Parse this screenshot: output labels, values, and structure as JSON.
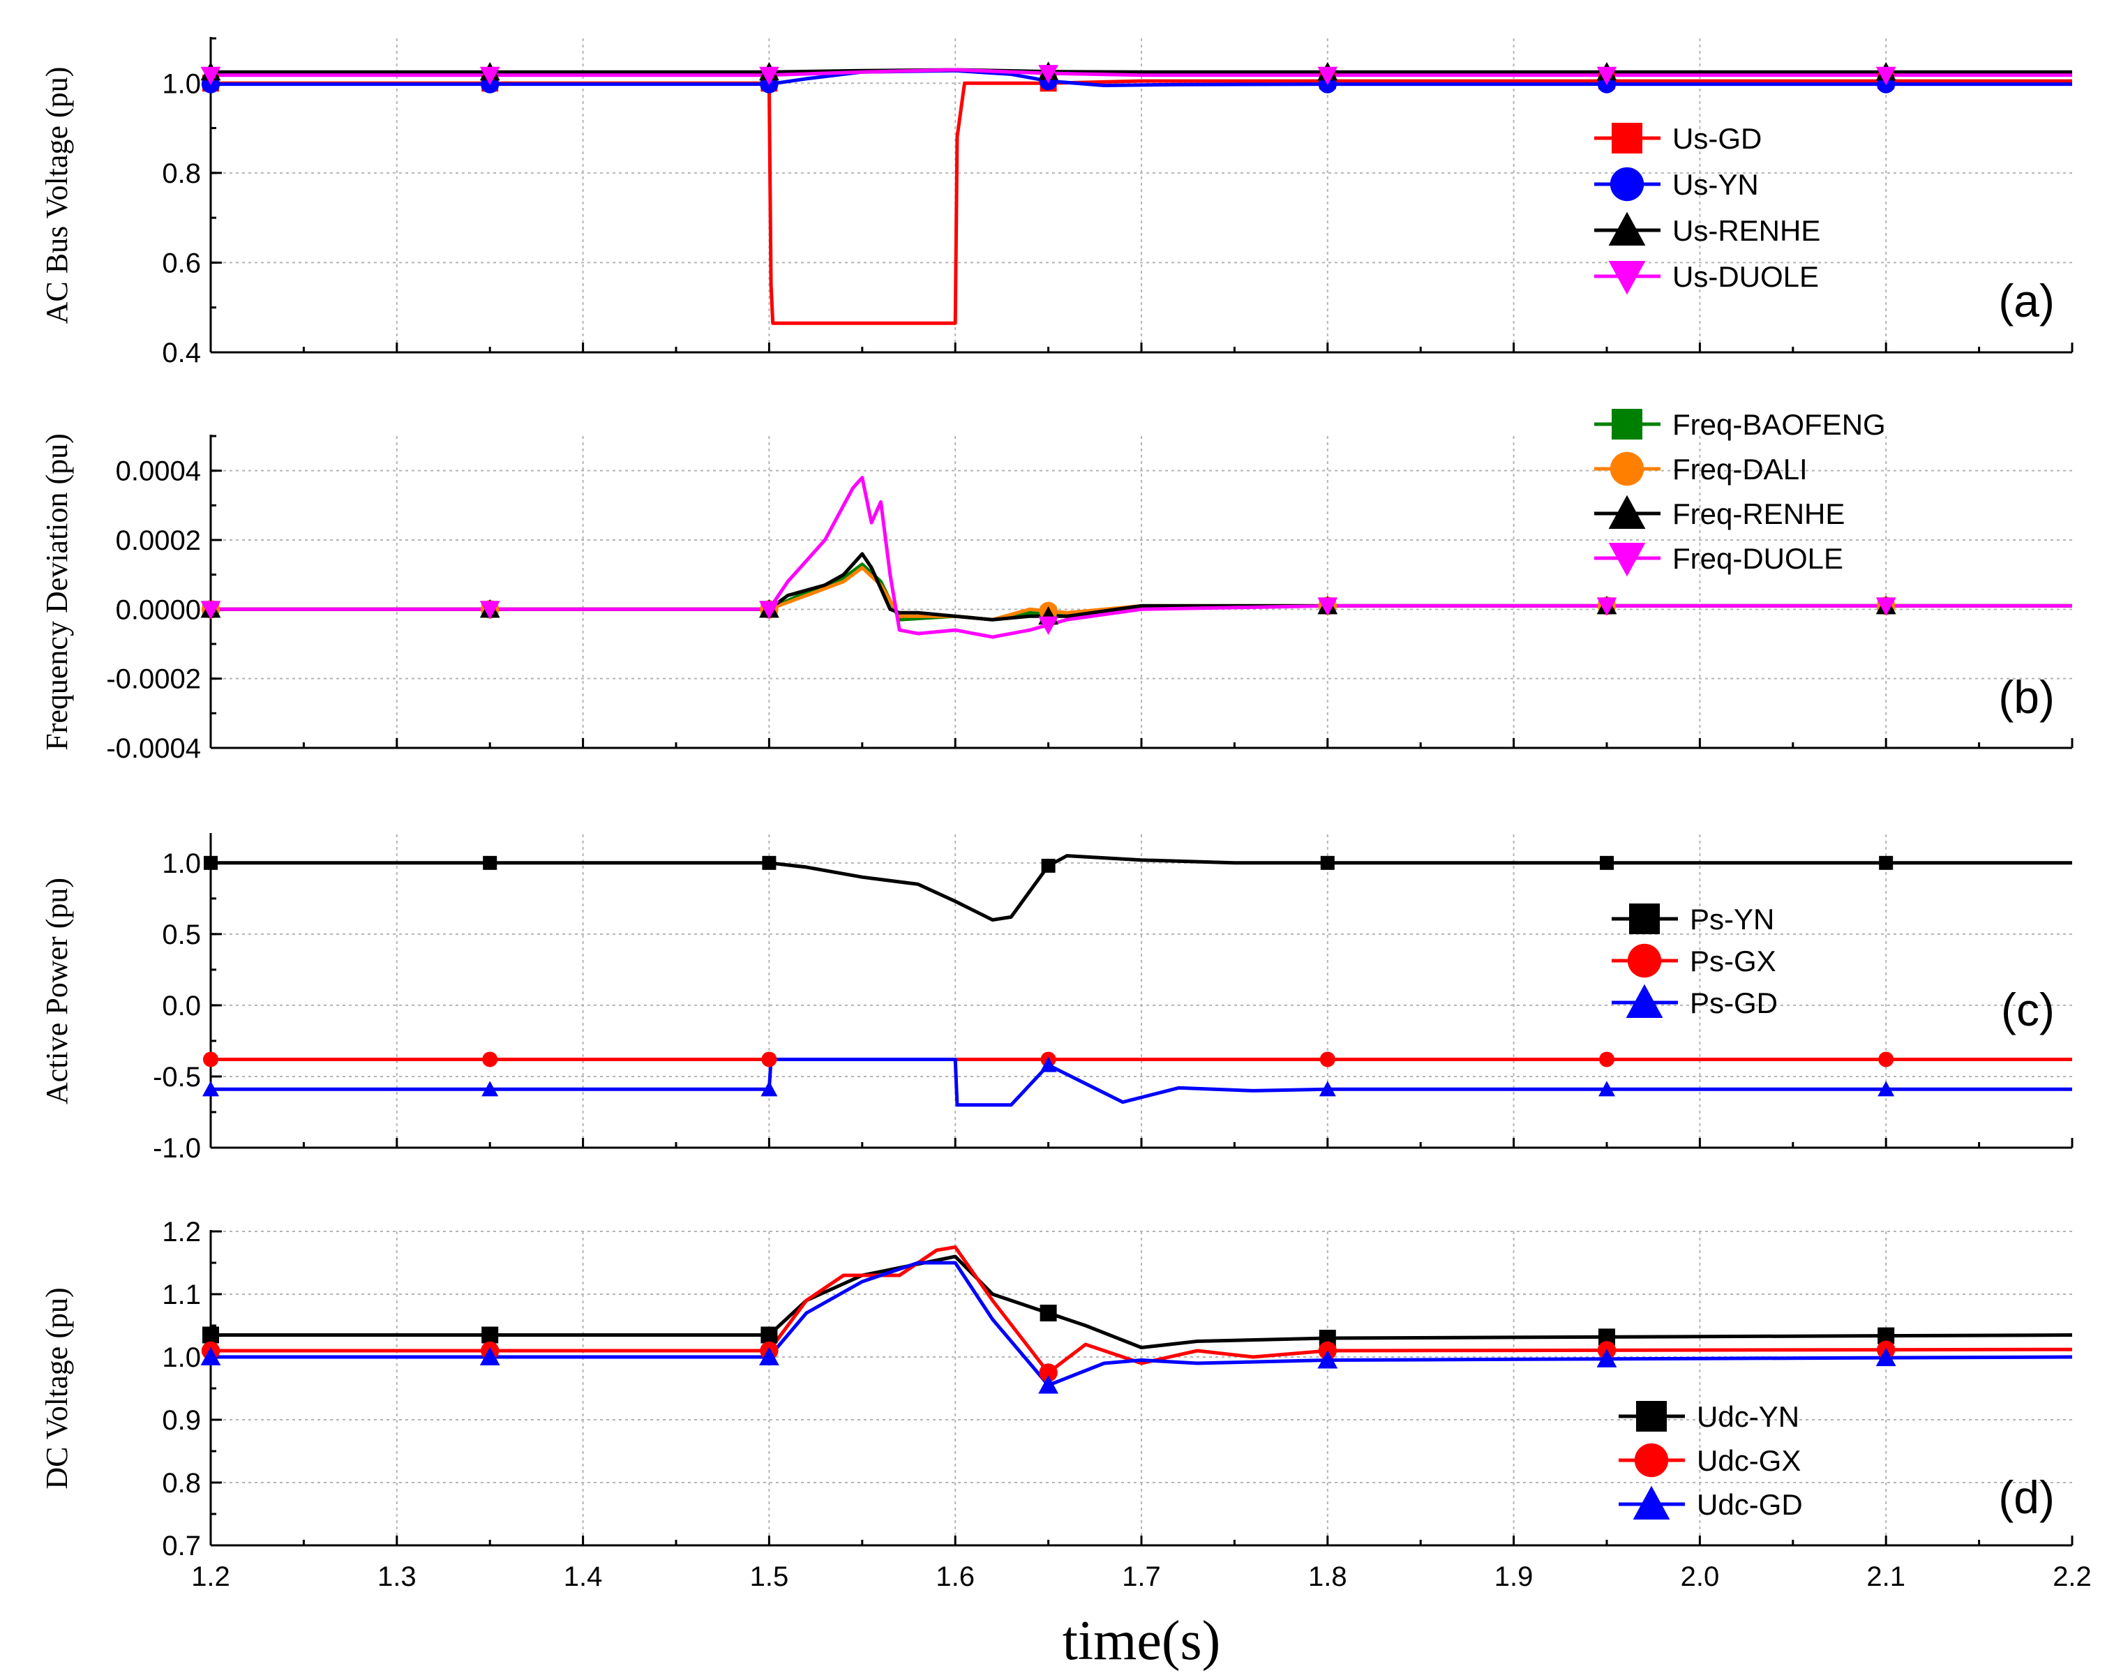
{
  "xlabel": "time(s)",
  "x_ticks": [
    "1.2",
    "1.3",
    "1.4",
    "1.5",
    "1.6",
    "1.7",
    "1.8",
    "1.9",
    "2.0",
    "2.1",
    "2.2"
  ],
  "chart_data": [
    {
      "type": "line",
      "panel_label": "(a)",
      "ylabel": "AC Bus Voltage (pu)",
      "xlim": [
        1.2,
        2.2
      ],
      "ylim": [
        0.4,
        1.1
      ],
      "y_ticks": [
        "0.4",
        "0.6",
        "0.8",
        "1.0"
      ],
      "grid": true,
      "legend_position": "right",
      "series": [
        {
          "name": "Us-GD",
          "color": "#ff0000",
          "marker": "square",
          "x": [
            1.2,
            1.5,
            1.501,
            1.502,
            1.6,
            1.601,
            1.605,
            1.65,
            1.7,
            1.8,
            2.2
          ],
          "y": [
            1.0,
            1.0,
            0.55,
            0.465,
            0.465,
            0.88,
            1.0,
            1.0,
            1.005,
            1.005,
            1.005
          ]
        },
        {
          "name": "Us-YN",
          "color": "#0000ff",
          "marker": "circle",
          "x": [
            1.2,
            1.5,
            1.52,
            1.55,
            1.6,
            1.63,
            1.65,
            1.68,
            1.72,
            1.8,
            2.2
          ],
          "y": [
            0.998,
            0.998,
            1.01,
            1.025,
            1.028,
            1.02,
            1.005,
            0.995,
            0.997,
            0.998,
            0.998
          ]
        },
        {
          "name": "Us-RENHE",
          "color": "#000000",
          "marker": "triangle-up",
          "x": [
            1.2,
            1.5,
            1.55,
            1.6,
            1.65,
            1.7,
            2.2
          ],
          "y": [
            1.025,
            1.025,
            1.028,
            1.03,
            1.026,
            1.025,
            1.025
          ]
        },
        {
          "name": "Us-DUOLE",
          "color": "#ff00ff",
          "marker": "triangle-down",
          "x": [
            1.2,
            1.5,
            1.55,
            1.6,
            1.65,
            1.7,
            2.2
          ],
          "y": [
            1.018,
            1.018,
            1.025,
            1.03,
            1.022,
            1.018,
            1.018
          ]
        }
      ]
    },
    {
      "type": "line",
      "panel_label": "(b)",
      "ylabel": "Frequency Deviation (pu)",
      "xlim": [
        1.2,
        2.2
      ],
      "ylim": [
        -0.0004,
        0.0005
      ],
      "y_ticks": [
        "-0.0004",
        "-0.0002",
        "0.0000",
        "0.0002",
        "0.0004"
      ],
      "grid": true,
      "legend_position": "top-right",
      "series": [
        {
          "name": "Freq-BAOFENG",
          "color": "#008000",
          "marker": "square",
          "x": [
            1.2,
            1.5,
            1.52,
            1.54,
            1.55,
            1.56,
            1.57,
            1.6,
            1.62,
            1.64,
            1.66,
            1.7,
            1.8,
            2.2
          ],
          "y": [
            0,
            0,
            5e-05,
            9e-05,
            0.00013,
            8e-05,
            -3e-05,
            -2e-05,
            -3e-05,
            -1e-05,
            -2e-05,
            1e-05,
            1e-05,
            1e-05
          ]
        },
        {
          "name": "Freq-DALI",
          "color": "#ff8000",
          "marker": "circle",
          "x": [
            1.2,
            1.5,
            1.52,
            1.54,
            1.55,
            1.56,
            1.57,
            1.6,
            1.62,
            1.64,
            1.66,
            1.7,
            1.8,
            2.2
          ],
          "y": [
            0,
            0,
            4e-05,
            8e-05,
            0.00012,
            7e-05,
            -2e-05,
            -2e-05,
            -3e-05,
            0.0,
            -1e-05,
            1e-05,
            1e-05,
            1e-05
          ]
        },
        {
          "name": "Freq-RENHE",
          "color": "#000000",
          "marker": "triangle-up",
          "x": [
            1.2,
            1.5,
            1.51,
            1.53,
            1.54,
            1.545,
            1.55,
            1.555,
            1.56,
            1.565,
            1.57,
            1.58,
            1.6,
            1.62,
            1.64,
            1.66,
            1.7,
            1.8,
            2.2
          ],
          "y": [
            0,
            0,
            4e-05,
            7e-05,
            0.0001,
            0.00013,
            0.00016,
            0.00012,
            6e-05,
            0.0,
            -1e-05,
            -1e-05,
            -2e-05,
            -3e-05,
            -2e-05,
            -2e-05,
            1e-05,
            1e-05,
            1e-05
          ]
        },
        {
          "name": "Freq-DUOLE",
          "color": "#ff00ff",
          "marker": "triangle-down",
          "x": [
            1.2,
            1.5,
            1.51,
            1.52,
            1.53,
            1.54,
            1.545,
            1.55,
            1.555,
            1.56,
            1.565,
            1.57,
            1.58,
            1.6,
            1.62,
            1.64,
            1.66,
            1.7,
            1.8,
            2.2
          ],
          "y": [
            0,
            0,
            8e-05,
            0.00014,
            0.0002,
            0.0003,
            0.00035,
            0.00038,
            0.00025,
            0.00031,
            0.0001,
            -6e-05,
            -7e-05,
            -6e-05,
            -8e-05,
            -6e-05,
            -3e-05,
            0.0,
            1e-05,
            1e-05
          ]
        }
      ]
    },
    {
      "type": "line",
      "panel_label": "(c)",
      "ylabel": "Active Power (pu)",
      "xlim": [
        1.2,
        2.2
      ],
      "ylim": [
        -1.0,
        1.2
      ],
      "y_ticks": [
        "-1.0",
        "-0.5",
        "0.0",
        "0.5",
        "1.0"
      ],
      "grid": true,
      "legend_position": "right",
      "series": [
        {
          "name": "Ps-YN",
          "color": "#000000",
          "marker": "square",
          "x": [
            1.2,
            1.5,
            1.52,
            1.55,
            1.58,
            1.6,
            1.62,
            1.63,
            1.64,
            1.65,
            1.66,
            1.7,
            1.75,
            2.2
          ],
          "y": [
            1.0,
            1.0,
            0.97,
            0.9,
            0.85,
            0.73,
            0.6,
            0.62,
            0.8,
            0.98,
            1.05,
            1.02,
            1.0,
            1.0
          ]
        },
        {
          "name": "Ps-GX",
          "color": "#ff0000",
          "marker": "circle",
          "x": [
            1.2,
            2.2
          ],
          "y": [
            -0.38,
            -0.38
          ]
        },
        {
          "name": "Ps-GD",
          "color": "#0000ff",
          "marker": "triangle-up",
          "x": [
            1.2,
            1.5,
            1.501,
            1.6,
            1.601,
            1.63,
            1.65,
            1.67,
            1.69,
            1.72,
            1.76,
            1.8,
            2.2
          ],
          "y": [
            -0.59,
            -0.59,
            -0.38,
            -0.38,
            -0.7,
            -0.7,
            -0.42,
            -0.55,
            -0.68,
            -0.58,
            -0.6,
            -0.59,
            -0.59
          ]
        }
      ]
    },
    {
      "type": "line",
      "panel_label": "(d)",
      "ylabel": "DC Voltage (pu)",
      "xlim": [
        1.2,
        2.2
      ],
      "ylim": [
        0.7,
        1.2
      ],
      "y_ticks": [
        "0.7",
        "0.8",
        "0.9",
        "1.0",
        "1.1",
        "1.2"
      ],
      "grid": true,
      "legend_position": "right",
      "series": [
        {
          "name": "Udc-YN",
          "color": "#000000",
          "marker": "square",
          "x": [
            1.2,
            1.5,
            1.52,
            1.55,
            1.6,
            1.62,
            1.64,
            1.67,
            1.7,
            1.73,
            1.8,
            2.2
          ],
          "y": [
            1.035,
            1.035,
            1.09,
            1.13,
            1.16,
            1.1,
            1.08,
            1.05,
            1.015,
            1.025,
            1.03,
            1.035
          ]
        },
        {
          "name": "Udc-GX",
          "color": "#ff0000",
          "marker": "circle",
          "x": [
            1.2,
            1.5,
            1.52,
            1.54,
            1.57,
            1.59,
            1.6,
            1.62,
            1.65,
            1.67,
            1.69,
            1.7,
            1.73,
            1.76,
            1.8,
            2.2
          ],
          "y": [
            1.01,
            1.01,
            1.09,
            1.13,
            1.13,
            1.17,
            1.175,
            1.09,
            0.975,
            1.02,
            1.0,
            0.99,
            1.01,
            1.0,
            1.01,
            1.012
          ]
        },
        {
          "name": "Udc-GD",
          "color": "#0000ff",
          "marker": "triangle-up",
          "x": [
            1.2,
            1.5,
            1.52,
            1.55,
            1.58,
            1.6,
            1.62,
            1.65,
            1.68,
            1.7,
            1.73,
            1.8,
            2.2
          ],
          "y": [
            1.0,
            1.0,
            1.07,
            1.12,
            1.15,
            1.15,
            1.06,
            0.955,
            0.99,
            0.995,
            0.99,
            0.995,
            1.0
          ]
        }
      ]
    }
  ]
}
